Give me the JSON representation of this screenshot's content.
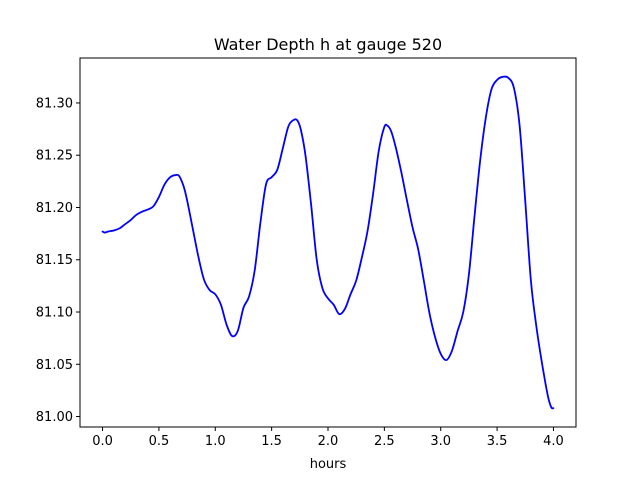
{
  "chart_data": {
    "type": "line",
    "title": "Water Depth h at gauge 520",
    "xlabel": "hours",
    "ylabel": "",
    "xlim": [
      -0.2,
      4.2
    ],
    "ylim": [
      80.99,
      81.343
    ],
    "xticks": [
      0.0,
      0.5,
      1.0,
      1.5,
      2.0,
      2.5,
      3.0,
      3.5,
      4.0
    ],
    "xtick_labels": [
      "0.0",
      "0.5",
      "1.0",
      "1.5",
      "2.0",
      "2.5",
      "3.0",
      "3.5",
      "4.0"
    ],
    "yticks": [
      81.0,
      81.05,
      81.1,
      81.15,
      81.2,
      81.25,
      81.3
    ],
    "ytick_labels": [
      "81.00",
      "81.05",
      "81.10",
      "81.15",
      "81.20",
      "81.25",
      "81.30"
    ],
    "grid": false,
    "series": [
      {
        "color": "#0000ff",
        "x": [
          0.0,
          0.02,
          0.05,
          0.1,
          0.15,
          0.2,
          0.25,
          0.3,
          0.35,
          0.4,
          0.45,
          0.5,
          0.55,
          0.6,
          0.65,
          0.68,
          0.72,
          0.75,
          0.8,
          0.85,
          0.9,
          0.95,
          1.0,
          1.05,
          1.1,
          1.15,
          1.2,
          1.25,
          1.3,
          1.35,
          1.4,
          1.45,
          1.5,
          1.55,
          1.6,
          1.65,
          1.7,
          1.73,
          1.76,
          1.8,
          1.85,
          1.9,
          1.95,
          2.0,
          2.05,
          2.1,
          2.15,
          2.2,
          2.25,
          2.3,
          2.35,
          2.4,
          2.45,
          2.5,
          2.53,
          2.56,
          2.6,
          2.65,
          2.7,
          2.75,
          2.8,
          2.85,
          2.9,
          2.95,
          3.0,
          3.05,
          3.1,
          3.15,
          3.2,
          3.25,
          3.3,
          3.35,
          3.4,
          3.45,
          3.5,
          3.55,
          3.6,
          3.65,
          3.7,
          3.75,
          3.8,
          3.85,
          3.9,
          3.95,
          3.98,
          4.0
        ],
        "y": [
          81.177,
          81.176,
          81.177,
          81.178,
          81.18,
          81.184,
          81.188,
          81.193,
          81.196,
          81.198,
          81.201,
          81.21,
          81.222,
          81.229,
          81.231,
          81.23,
          81.22,
          81.207,
          81.18,
          81.153,
          81.131,
          81.121,
          81.117,
          81.107,
          81.088,
          81.077,
          81.082,
          81.104,
          81.115,
          81.14,
          81.185,
          81.222,
          81.229,
          81.236,
          81.257,
          81.278,
          81.284,
          81.283,
          81.274,
          81.25,
          81.203,
          81.15,
          81.123,
          81.113,
          81.107,
          81.098,
          81.103,
          81.117,
          81.13,
          81.152,
          81.177,
          81.213,
          81.254,
          81.277,
          81.278,
          81.273,
          81.258,
          81.234,
          81.207,
          81.181,
          81.16,
          81.13,
          81.099,
          81.076,
          81.06,
          81.054,
          81.063,
          81.082,
          81.1,
          81.136,
          81.192,
          81.245,
          81.286,
          81.313,
          81.322,
          81.325,
          81.324,
          81.314,
          81.278,
          81.206,
          81.13,
          81.085,
          81.05,
          81.02,
          81.009,
          81.008
        ]
      }
    ]
  }
}
